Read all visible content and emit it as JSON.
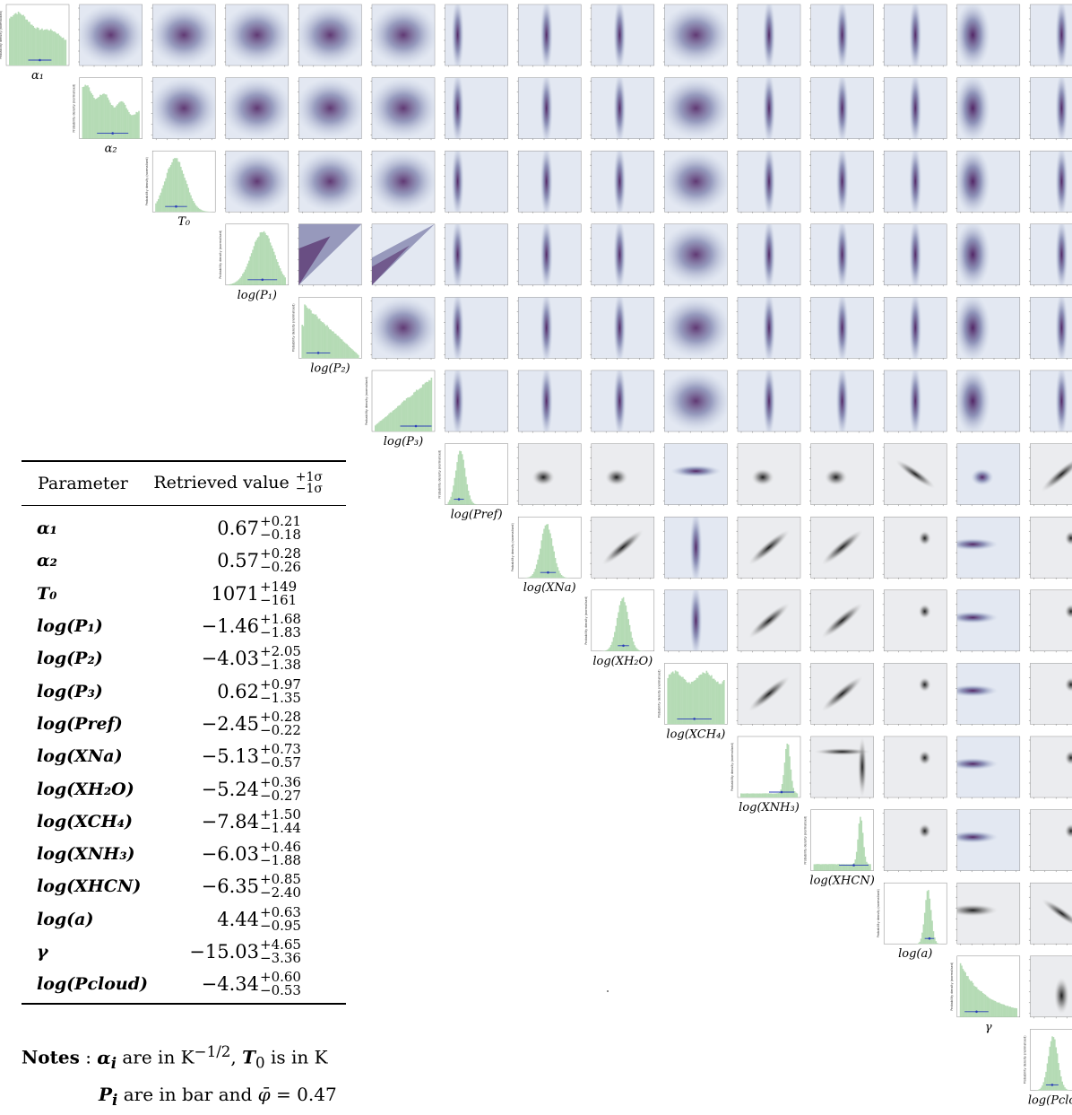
{
  "params": [
    {
      "key": "a1",
      "label": "α",
      "sub": "1"
    },
    {
      "key": "a2",
      "label": "α",
      "sub": "2"
    },
    {
      "key": "T0",
      "label": "T",
      "sub": "0"
    },
    {
      "key": "P1",
      "label": "log(P",
      "sub": "1",
      ")": true
    },
    {
      "key": "P2",
      "label": "log(P",
      "sub": "2"
    },
    {
      "key": "P3",
      "label": "log(P",
      "sub": "3"
    },
    {
      "key": "Pref",
      "label": "log(P",
      "sub": "ref"
    },
    {
      "key": "XNa",
      "label": "log(X",
      "sub": "Na"
    },
    {
      "key": "XH2O",
      "label": "log(X",
      "sub": "H2O"
    },
    {
      "key": "XCH4",
      "label": "log(X",
      "sub": "CH4"
    },
    {
      "key": "XNH3",
      "label": "log(X",
      "sub": "NH3"
    },
    {
      "key": "XHCN",
      "label": "log(X",
      "sub": "HCN"
    },
    {
      "key": "a",
      "label": "log(a)",
      "sub": ""
    },
    {
      "key": "gamma",
      "label": "γ",
      "sub": ""
    },
    {
      "key": "Pcloud",
      "label": "log(P",
      "sub": "cloud"
    }
  ],
  "diag_labels": [
    "α₁",
    "α₂",
    "T₀",
    "log(P₁)",
    "log(P₂)",
    "log(P₃)",
    "log(Pref)",
    "log(XNa)",
    "log(XH₂O)",
    "log(XCH₄)",
    "log(XNH₃)",
    "log(XHCN)",
    "log(a)",
    "γ",
    "log(Pcloud)"
  ],
  "density_label": "Probability density (normalised)",
  "table": {
    "header_param": "Parameter",
    "header_value": "Retrieved value",
    "header_plus": "+1σ",
    "header_minus": "−1σ",
    "rows": [
      {
        "name": "α₁",
        "value": "0.67",
        "plus": "+0.21",
        "minus": "−0.18"
      },
      {
        "name": "α₂",
        "value": "0.57",
        "plus": "+0.28",
        "minus": "−0.26"
      },
      {
        "name": "T₀",
        "value": "1071",
        "plus": "+149",
        "minus": "−161"
      },
      {
        "name": "log(P₁)",
        "value": "−1.46",
        "plus": "+1.68",
        "minus": "−1.83"
      },
      {
        "name": "log(P₂)",
        "value": "−4.03",
        "plus": "+2.05",
        "minus": "−1.38"
      },
      {
        "name": "log(P₃)",
        "value": "0.62",
        "plus": "+0.97",
        "minus": "−1.35"
      },
      {
        "name": "log(Pref)",
        "value": "−2.45",
        "plus": "+0.28",
        "minus": "−0.22"
      },
      {
        "name": "log(XNa)",
        "value": "−5.13",
        "plus": "+0.73",
        "minus": "−0.57"
      },
      {
        "name": "log(XH₂O)",
        "value": "−5.24",
        "plus": "+0.36",
        "minus": "−0.27"
      },
      {
        "name": "log(XCH₄)",
        "value": "−7.84",
        "plus": "+1.50",
        "minus": "−1.44"
      },
      {
        "name": "log(XNH₃)",
        "value": "−6.03",
        "plus": "+0.46",
        "minus": "−1.88"
      },
      {
        "name": "log(XHCN)",
        "value": "−6.35",
        "plus": "+0.85",
        "minus": "−2.40"
      },
      {
        "name": "log(a)",
        "value": "4.44",
        "plus": "+0.63",
        "minus": "−0.95"
      },
      {
        "name": "γ",
        "value": "−15.03",
        "plus": "+4.65",
        "minus": "−3.36"
      },
      {
        "name": "log(Pcloud)",
        "value": "−4.34",
        "plus": "+0.60",
        "minus": "−0.53"
      }
    ]
  },
  "notes": {
    "line1": "Notes : αᵢ are in K⁻¹ᐟ², T₀ is in K",
    "line2": "Pᵢ are in bar and φ̄ = 0.47"
  },
  "chart_data": {
    "type": "corner",
    "parameters": [
      "α₁",
      "α₂",
      "T₀",
      "log(P₁)",
      "log(P₂)",
      "log(P₃)",
      "log(Pref)",
      "log(XNa)",
      "log(XH₂O)",
      "log(XCH₄)",
      "log(XNH₃)",
      "log(XHCN)",
      "log(a)",
      "γ",
      "log(Pcloud)"
    ],
    "median": [
      0.67,
      0.57,
      1071,
      -1.46,
      -4.03,
      0.62,
      -2.45,
      -5.13,
      -5.24,
      -7.84,
      -6.03,
      -6.35,
      4.44,
      -15.03,
      -4.34
    ],
    "plus_1sigma": [
      0.21,
      0.28,
      149,
      1.68,
      2.05,
      0.97,
      0.28,
      0.73,
      0.36,
      1.5,
      0.46,
      0.85,
      0.63,
      4.65,
      0.6
    ],
    "minus_1sigma": [
      0.18,
      0.26,
      161,
      1.83,
      1.38,
      1.35,
      0.22,
      0.57,
      0.27,
      1.44,
      1.88,
      2.4,
      0.95,
      3.36,
      0.53
    ],
    "ranges": [
      [
        0,
        1
      ],
      [
        0,
        1
      ],
      [
        800,
        1600
      ],
      [
        -6,
        2
      ],
      [
        -6,
        2
      ],
      [
        -2,
        2
      ],
      [
        -4,
        -0.5
      ],
      [
        -8,
        -3
      ],
      [
        -6,
        -4
      ],
      [
        -10,
        -4
      ],
      [
        -10,
        -4
      ],
      [
        -10,
        -4
      ],
      [
        -4,
        8
      ],
      [
        -20,
        -4
      ],
      [
        -6,
        2
      ]
    ],
    "histogram_color": "#b5dbb5",
    "density_colormap": [
      "#ffffff",
      "#b7c7dc",
      "#6f7fa8",
      "#5b2d6e"
    ],
    "errorbar_color": "#2b3fb8"
  }
}
